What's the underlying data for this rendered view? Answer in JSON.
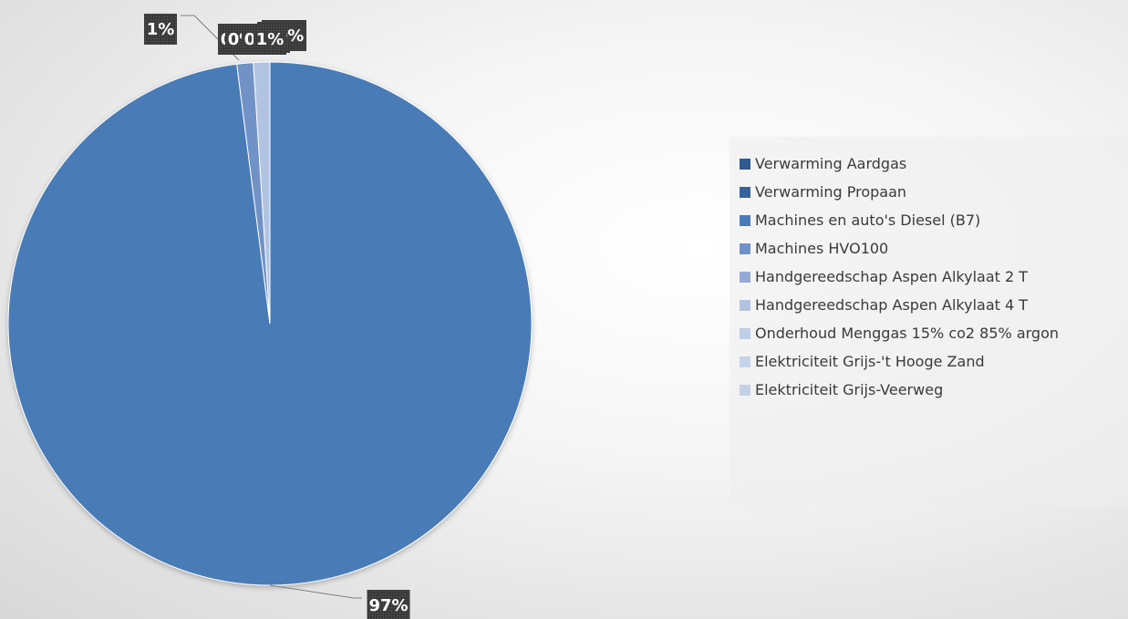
{
  "chart_data": {
    "type": "pie",
    "title": "",
    "categories": [
      "Verwarming Aardgas",
      "Verwarming Propaan",
      "Machines en auto's Diesel (B7)",
      "Machines  HVO100",
      "Handgereedschap Aspen Alkylaat 2 T",
      "Handgereedschap Aspen Alkylaat 4 T",
      "Onderhoud Menggas 15% co2 85% argon",
      "Elektriciteit Grijs-'t Hooge Zand",
      "Elektriciteit Grijs-Veerweg"
    ],
    "values": [
      0,
      0,
      97,
      1,
      0,
      1,
      0,
      0,
      0
    ],
    "data_labels": [
      "0%",
      "0%",
      "97%",
      "1%",
      "0%",
      "1%",
      "0%",
      "0%",
      "0%"
    ],
    "colors": [
      "#2f5a8e",
      "#35649c",
      "#4a7bb7",
      "#6f92c6",
      "#93abd4",
      "#b2c3e1",
      "#bfcde6",
      "#c6d2ea",
      "#c4d0e8"
    ],
    "legend_position": "right"
  }
}
